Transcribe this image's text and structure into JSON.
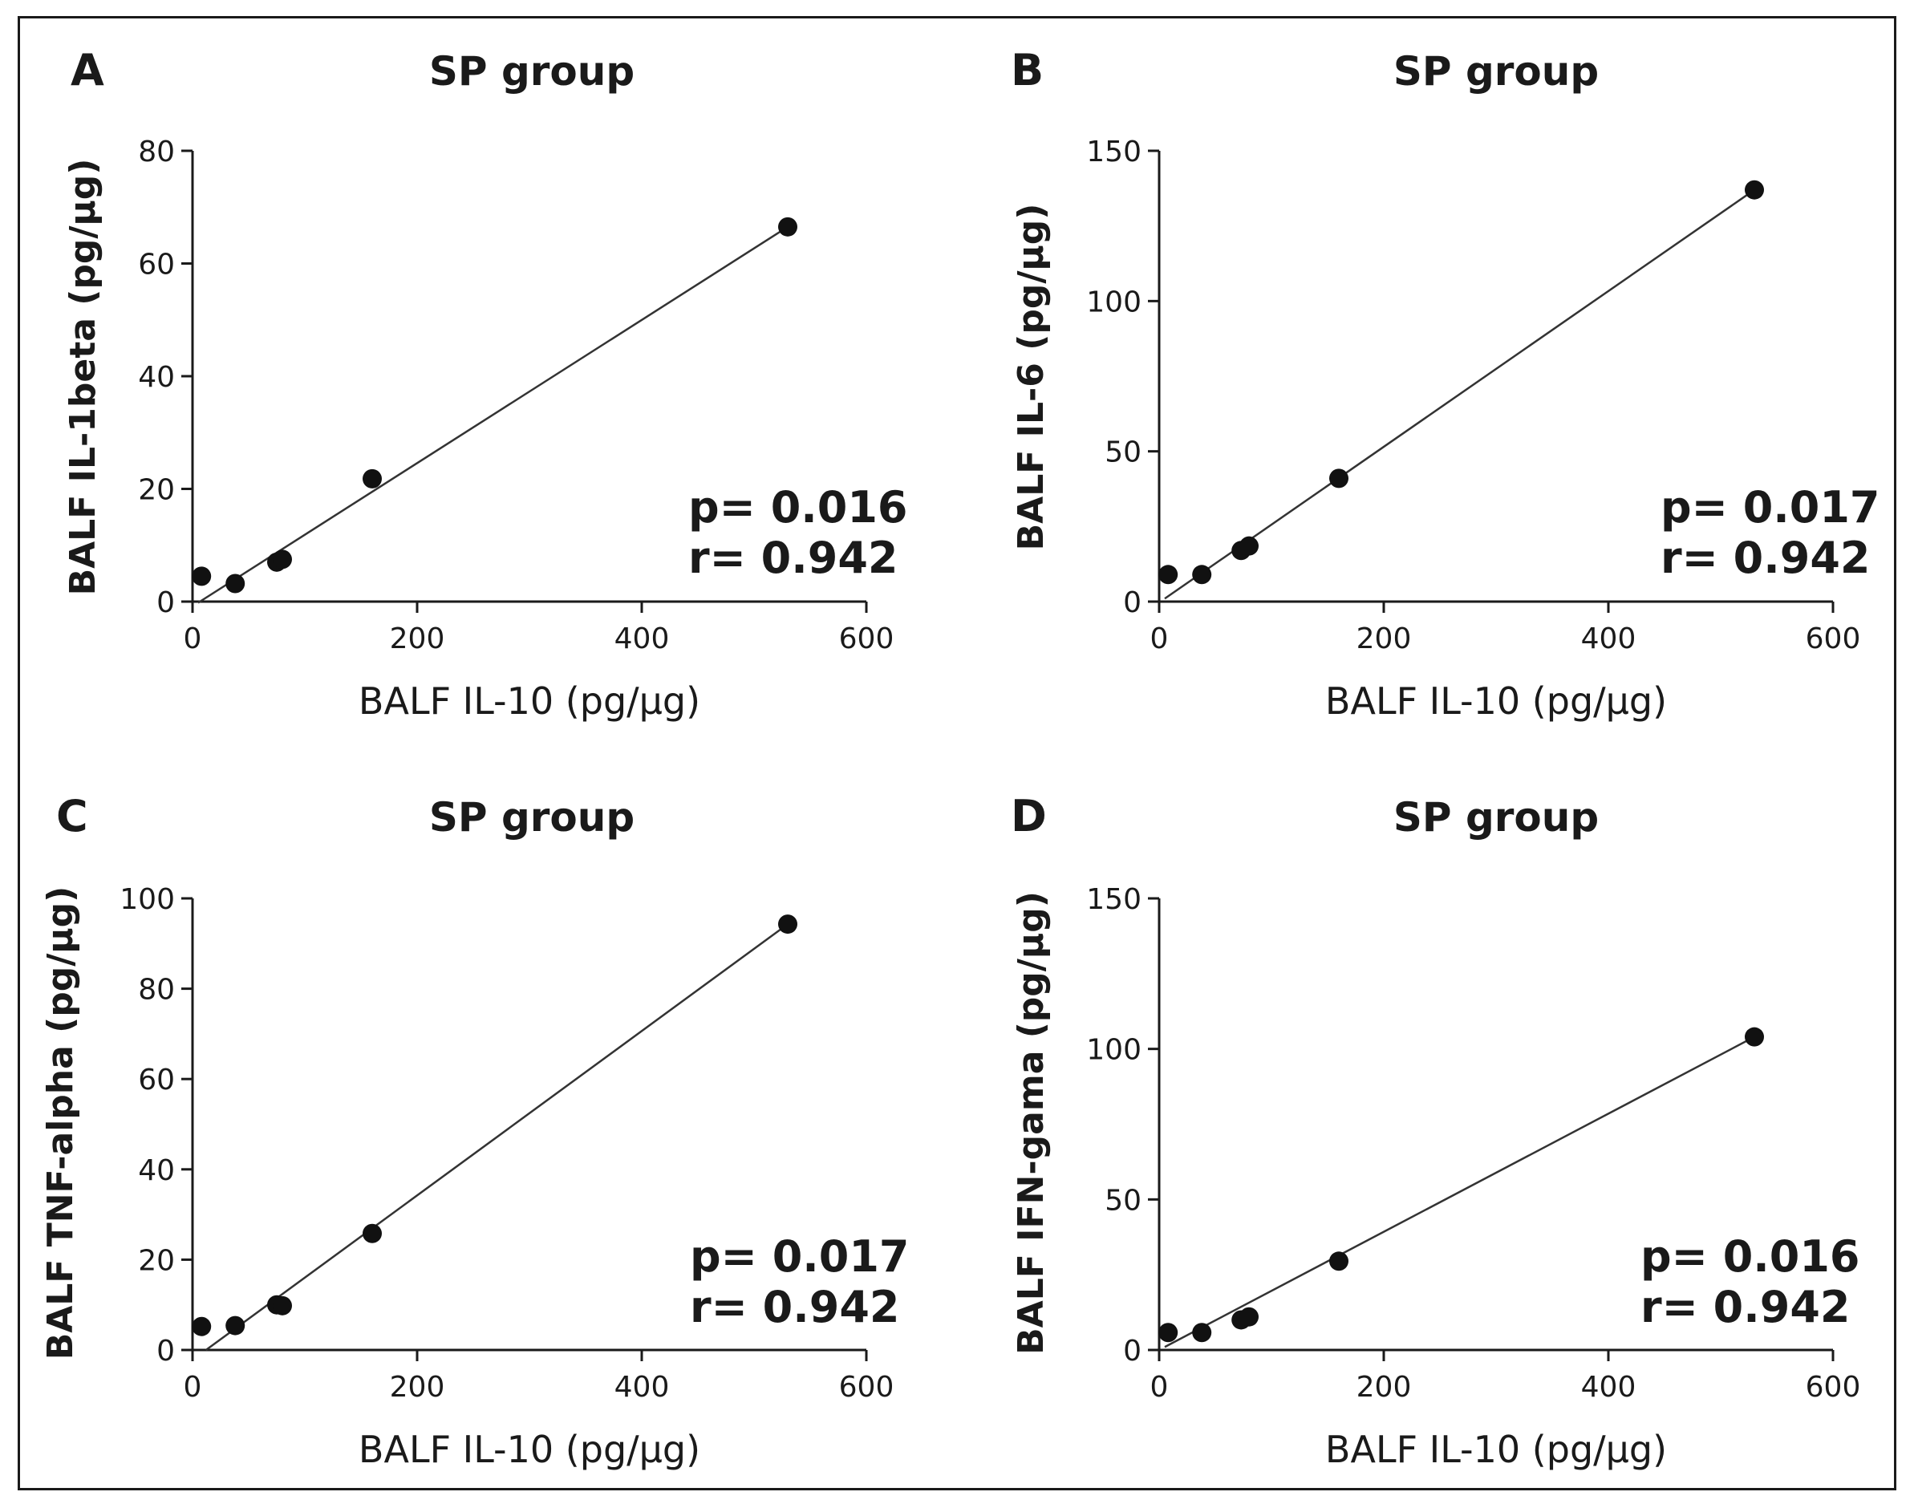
{
  "chart_data": [
    {
      "type": "scatter",
      "panel_label": "A",
      "title": "SP group",
      "xlabel": "BALF IL-10 (pg/µg)",
      "ylabel": "BALF IL-1beta (pg/µg)",
      "xlim": [
        0,
        600
      ],
      "ylim": [
        0,
        80
      ],
      "xticks": [
        "0",
        "200",
        "400",
        "600"
      ],
      "yticks": [
        "0",
        "20",
        "40",
        "60",
        "80"
      ],
      "points": [
        {
          "x": 8,
          "y": 4.5
        },
        {
          "x": 38,
          "y": 3.2
        },
        {
          "x": 75,
          "y": 7
        },
        {
          "x": 80,
          "y": 7.5
        },
        {
          "x": 160,
          "y": 21.8
        },
        {
          "x": 530,
          "y": 66.5
        }
      ],
      "fit_line": {
        "x": [
          5,
          530
        ],
        "y": [
          -0.2,
          66.5
        ]
      },
      "p_text": "p= 0.016",
      "r_text": "r= 0.942",
      "grid": false
    },
    {
      "type": "scatter",
      "panel_label": "B",
      "title": "SP group",
      "xlabel": "BALF IL-10 (pg/µg)",
      "ylabel": "BALF IL-6 (pg/µg)",
      "xlim": [
        0,
        600
      ],
      "ylim": [
        0,
        150
      ],
      "xticks": [
        "0",
        "200",
        "400",
        "600"
      ],
      "yticks": [
        "0",
        "50",
        "100",
        "150"
      ],
      "points": [
        {
          "x": 8,
          "y": 9
        },
        {
          "x": 38,
          "y": 9
        },
        {
          "x": 73,
          "y": 17
        },
        {
          "x": 80,
          "y": 18.5
        },
        {
          "x": 160,
          "y": 41
        },
        {
          "x": 530,
          "y": 137
        }
      ],
      "fit_line": {
        "x": [
          5,
          530
        ],
        "y": [
          1,
          137
        ]
      },
      "p_text": "p= 0.017",
      "r_text": "r= 0.942",
      "grid": false
    },
    {
      "type": "scatter",
      "panel_label": "C",
      "title": "SP group",
      "xlabel": "BALF IL-10 (pg/µg)",
      "ylabel": "BALF TNF-alpha (pg/µg)",
      "xlim": [
        0,
        600
      ],
      "ylim": [
        0,
        100
      ],
      "xticks": [
        "0",
        "200",
        "400",
        "600"
      ],
      "yticks": [
        "0",
        "20",
        "40",
        "60",
        "80",
        "100"
      ],
      "points": [
        {
          "x": 8,
          "y": 5.2
        },
        {
          "x": 38,
          "y": 5.4
        },
        {
          "x": 75,
          "y": 10
        },
        {
          "x": 80,
          "y": 9.8
        },
        {
          "x": 160,
          "y": 25.8
        },
        {
          "x": 530,
          "y": 94.3
        }
      ],
      "fit_line": {
        "x": [
          12,
          530
        ],
        "y": [
          0,
          94.3
        ]
      },
      "p_text": "p= 0.017",
      "r_text": "r= 0.942",
      "grid": false
    },
    {
      "type": "scatter",
      "panel_label": "D",
      "title": "SP group",
      "xlabel": "BALF IL-10 (pg/µg)",
      "ylabel": "BALF IFN-gama (pg/µg)",
      "xlim": [
        0,
        600
      ],
      "ylim": [
        0,
        150
      ],
      "xticks": [
        "0",
        "200",
        "400",
        "600"
      ],
      "yticks": [
        "0",
        "50",
        "100",
        "150"
      ],
      "points": [
        {
          "x": 8,
          "y": 5.8
        },
        {
          "x": 38,
          "y": 5.8
        },
        {
          "x": 73,
          "y": 10
        },
        {
          "x": 80,
          "y": 11
        },
        {
          "x": 160,
          "y": 29.5
        },
        {
          "x": 530,
          "y": 104
        }
      ],
      "fit_line": {
        "x": [
          5,
          530
        ],
        "y": [
          1,
          104
        ]
      },
      "p_text": "p= 0.016",
      "r_text": "r= 0.942",
      "grid": false
    }
  ]
}
